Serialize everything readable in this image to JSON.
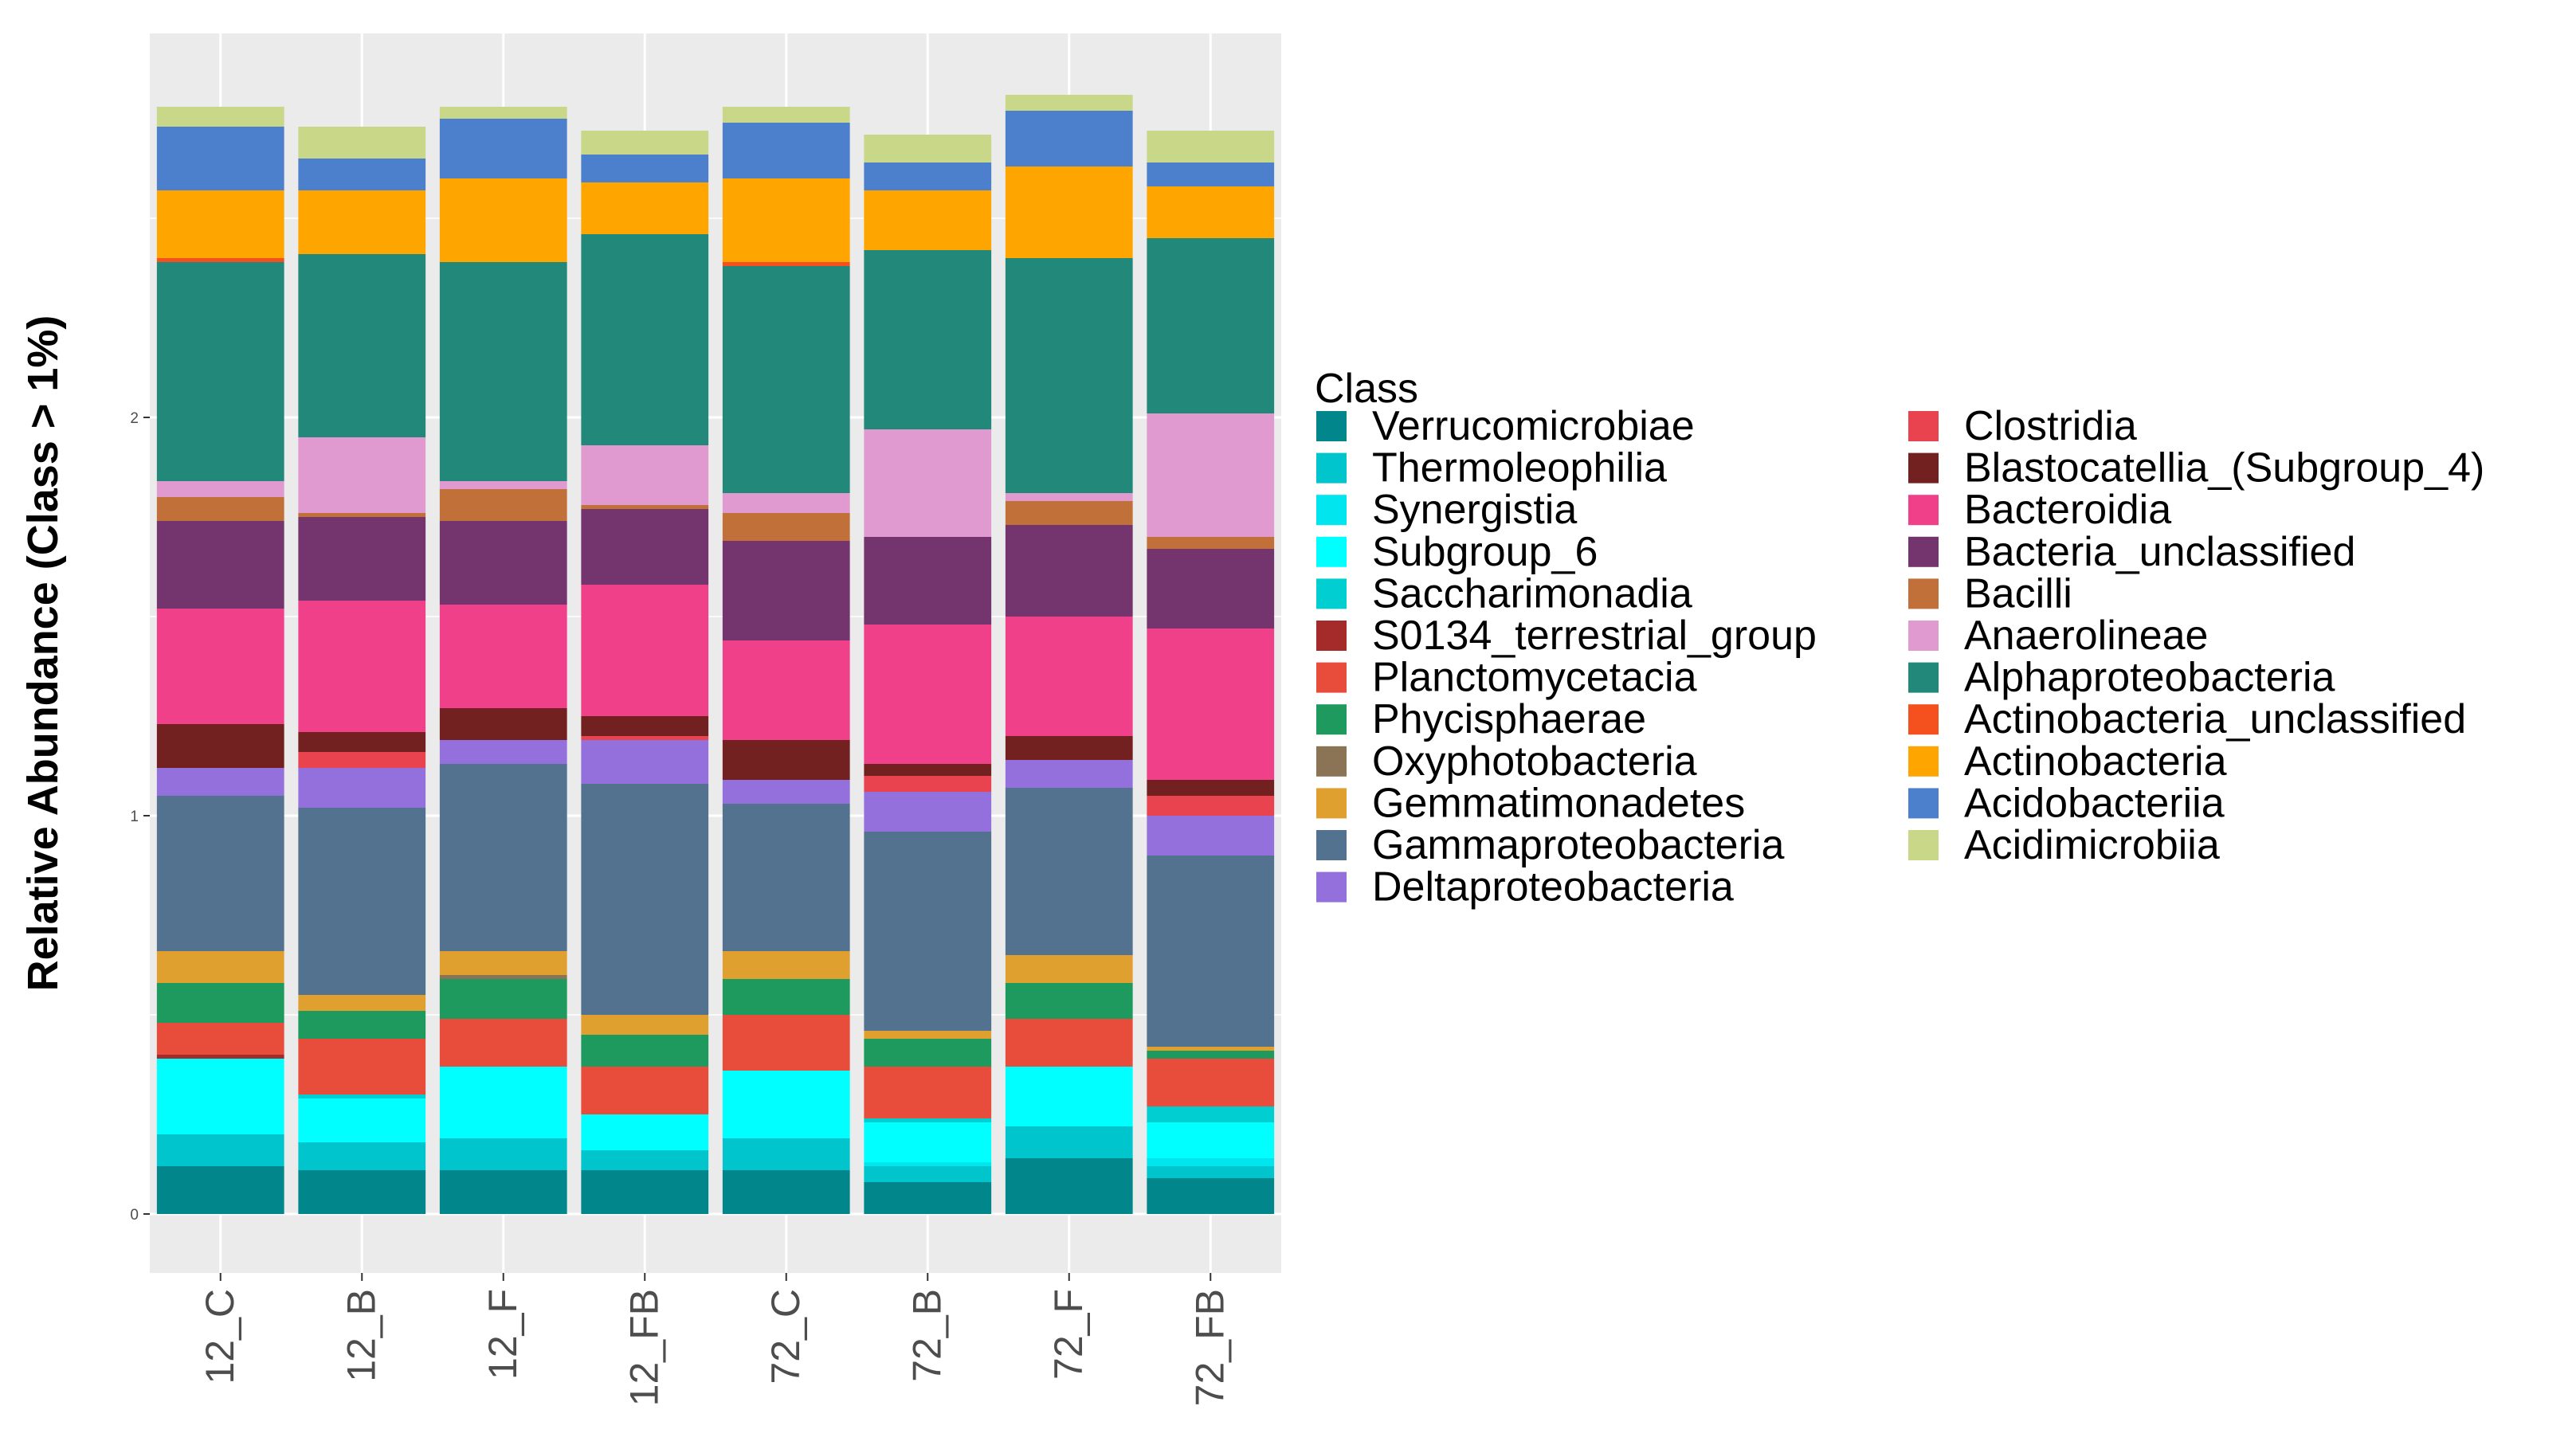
{
  "chart_data": {
    "type": "bar",
    "stacked": true,
    "title": "",
    "xlabel": "",
    "ylabel": "Relative Abundance (Class > 1%)",
    "ylim": [
      0,
      2.85
    ],
    "yticks": [
      0,
      1,
      2
    ],
    "grid": true,
    "legend_title": "Class",
    "legend_position": "right",
    "categories": [
      "12_C",
      "12_B",
      "12_F",
      "12_FB",
      "72_C",
      "72_B",
      "72_F",
      "72_FB"
    ],
    "series": [
      {
        "name": "Verrucomicrobiae",
        "color": "#00868B",
        "values": [
          0.12,
          0.11,
          0.11,
          0.11,
          0.11,
          0.08,
          0.14,
          0.09
        ]
      },
      {
        "name": "Thermoleophilia",
        "color": "#00C5CD",
        "values": [
          0.08,
          0.07,
          0.08,
          0.05,
          0.08,
          0.04,
          0.08,
          0.03
        ]
      },
      {
        "name": "Synergistia",
        "color": "#00E5EE",
        "values": [
          0.0,
          0.0,
          0.0,
          0.0,
          0.0,
          0.01,
          0.0,
          0.02
        ]
      },
      {
        "name": "Subgroup_6",
        "color": "#00FFFF",
        "values": [
          0.19,
          0.11,
          0.18,
          0.09,
          0.17,
          0.1,
          0.15,
          0.09
        ]
      },
      {
        "name": "Saccharimonadia",
        "color": "#00CED1",
        "values": [
          0.0,
          0.01,
          0.0,
          0.0,
          0.0,
          0.01,
          0.0,
          0.04
        ]
      },
      {
        "name": "S0134_terrestrial_group",
        "color": "#A52A2A",
        "values": [
          0.01,
          0.0,
          0.0,
          0.0,
          0.0,
          0.0,
          0.0,
          0.0
        ]
      },
      {
        "name": "Planctomycetacia",
        "color": "#E84D3C",
        "values": [
          0.08,
          0.14,
          0.12,
          0.12,
          0.14,
          0.13,
          0.12,
          0.12
        ]
      },
      {
        "name": "Phycisphaerae",
        "color": "#1E9A5E",
        "values": [
          0.1,
          0.07,
          0.1,
          0.08,
          0.09,
          0.07,
          0.09,
          0.02
        ]
      },
      {
        "name": "Oxyphotobacteria",
        "color": "#8B7355",
        "values": [
          0.0,
          0.0,
          0.01,
          0.0,
          0.0,
          0.0,
          0.0,
          0.0
        ]
      },
      {
        "name": "Gemmatimonadetes",
        "color": "#E0A030",
        "values": [
          0.08,
          0.04,
          0.06,
          0.05,
          0.07,
          0.02,
          0.07,
          0.01
        ]
      },
      {
        "name": "Gammaproteobacteria",
        "color": "#52728F",
        "values": [
          0.39,
          0.47,
          0.47,
          0.58,
          0.37,
          0.5,
          0.42,
          0.48
        ]
      },
      {
        "name": "Deltaproteobacteria",
        "color": "#9370DB",
        "values": [
          0.07,
          0.1,
          0.06,
          0.11,
          0.06,
          0.1,
          0.07,
          0.1
        ]
      },
      {
        "name": "Clostridia",
        "color": "#E8434F",
        "values": [
          0.0,
          0.04,
          0.0,
          0.01,
          0.0,
          0.04,
          0.0,
          0.05
        ]
      },
      {
        "name": "Blastocatellia_(Subgroup_4)",
        "color": "#722020",
        "values": [
          0.11,
          0.05,
          0.08,
          0.05,
          0.1,
          0.03,
          0.06,
          0.04
        ]
      },
      {
        "name": "Bacteroidia",
        "color": "#F0408A",
        "values": [
          0.29,
          0.33,
          0.26,
          0.33,
          0.25,
          0.35,
          0.3,
          0.38
        ]
      },
      {
        "name": "Bacteria_unclassified",
        "color": "#74346E",
        "values": [
          0.22,
          0.21,
          0.21,
          0.19,
          0.25,
          0.22,
          0.23,
          0.2
        ]
      },
      {
        "name": "Bacilli",
        "color": "#C07038",
        "values": [
          0.06,
          0.01,
          0.08,
          0.01,
          0.07,
          0.0,
          0.06,
          0.03
        ]
      },
      {
        "name": "Anaerolineae",
        "color": "#E09AD0",
        "values": [
          0.04,
          0.19,
          0.02,
          0.15,
          0.05,
          0.27,
          0.02,
          0.31
        ]
      },
      {
        "name": "Alphaproteobacteria",
        "color": "#22887A",
        "values": [
          0.55,
          0.46,
          0.55,
          0.53,
          0.57,
          0.45,
          0.59,
          0.44
        ]
      },
      {
        "name": "Actinobacteria_unclassified",
        "color": "#F4511E",
        "values": [
          0.01,
          0.0,
          0.0,
          0.0,
          0.01,
          0.0,
          0.0,
          0.0
        ]
      },
      {
        "name": "Actinobacteria",
        "color": "#FFA500",
        "values": [
          0.17,
          0.16,
          0.21,
          0.13,
          0.21,
          0.15,
          0.23,
          0.13
        ]
      },
      {
        "name": "Acidobacteriia",
        "color": "#4C80CC",
        "values": [
          0.16,
          0.08,
          0.15,
          0.07,
          0.14,
          0.07,
          0.14,
          0.06
        ]
      },
      {
        "name": "Acidimicrobiia",
        "color": "#C8D888",
        "values": [
          0.05,
          0.08,
          0.03,
          0.06,
          0.04,
          0.07,
          0.04,
          0.08
        ]
      }
    ]
  }
}
